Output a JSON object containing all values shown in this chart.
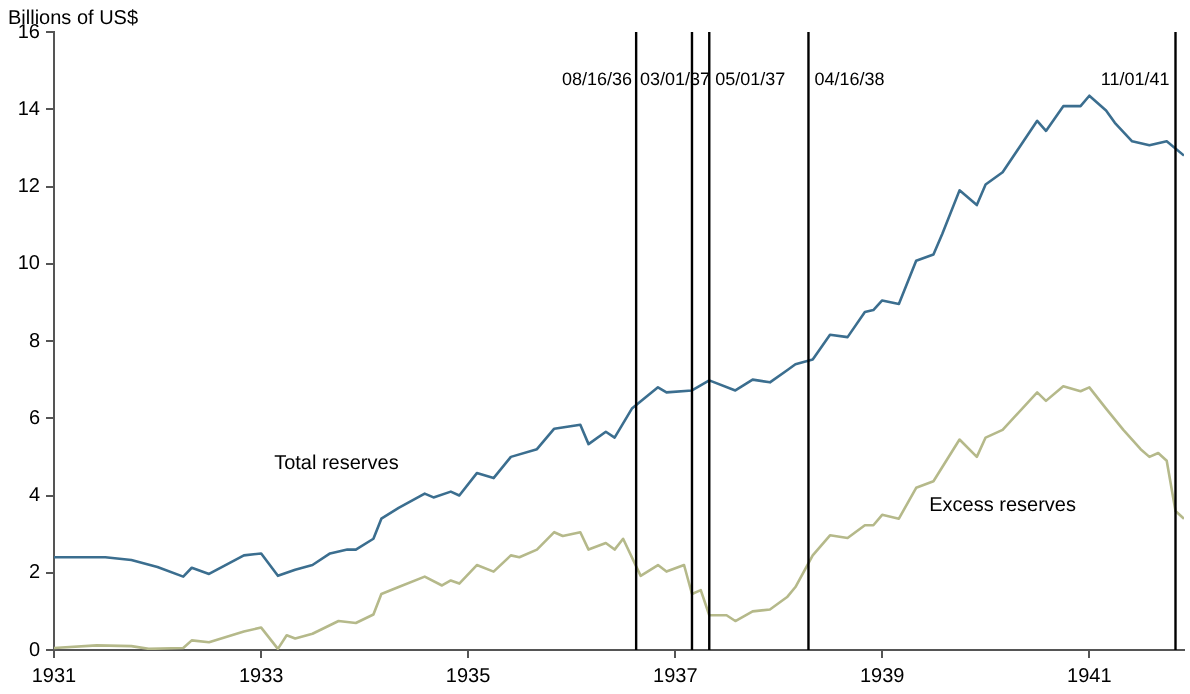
{
  "chart_data": {
    "type": "line",
    "ylabel": "Billions of US$",
    "xlim": [
      "1931-01",
      "1941-12"
    ],
    "xticks": [
      "1931",
      "1933",
      "1935",
      "1937",
      "1939",
      "1941"
    ],
    "ylim": [
      0,
      16
    ],
    "yticks": [
      0,
      2,
      4,
      6,
      8,
      10,
      12,
      14,
      16
    ],
    "grid": false,
    "legend": false,
    "marker": "none",
    "line_style": "solid",
    "series": [
      {
        "name": "Total reserves",
        "color": "#3b6e8f",
        "x": [
          "1931-01",
          "1931-07",
          "1931-10",
          "1932-01",
          "1932-04",
          "1932-05",
          "1932-07",
          "1932-11",
          "1933-01",
          "1933-03",
          "1933-05",
          "1933-07",
          "1933-09",
          "1933-11",
          "1933-12",
          "1934-02",
          "1934-03",
          "1934-05",
          "1934-08",
          "1934-09",
          "1934-11",
          "1934-12",
          "1935-02",
          "1935-04",
          "1935-06",
          "1935-09",
          "1935-11",
          "1936-02",
          "1936-03",
          "1936-05",
          "1936-06",
          "1936-08",
          "1936-11",
          "1936-12",
          "1937-03",
          "1937-05",
          "1937-08",
          "1937-10",
          "1937-12",
          "1938-02",
          "1938-03",
          "1938-05",
          "1938-07",
          "1938-09",
          "1938-11",
          "1938-12",
          "1939-01",
          "1939-03",
          "1939-05",
          "1939-07",
          "1939-08",
          "1939-10",
          "1939-12",
          "1940-01",
          "1940-03",
          "1940-07",
          "1940-08",
          "1940-10",
          "1940-12",
          "1941-01",
          "1941-03",
          "1941-04",
          "1941-06",
          "1941-08",
          "1941-10",
          "1941-12"
        ],
        "values": [
          2.4,
          2.4,
          2.33,
          2.15,
          1.9,
          2.13,
          1.97,
          2.45,
          2.5,
          1.92,
          2.08,
          2.2,
          2.5,
          2.6,
          2.6,
          2.88,
          3.4,
          3.68,
          4.05,
          3.95,
          4.1,
          4,
          4.58,
          4.45,
          5,
          5.2,
          5.73,
          5.83,
          5.33,
          5.65,
          5.5,
          6.25,
          6.8,
          6.67,
          6.72,
          6.98,
          6.72,
          7,
          6.93,
          7.25,
          7.4,
          7.52,
          8.16,
          8.1,
          8.75,
          8.8,
          9.05,
          8.96,
          10.08,
          10.24,
          10.77,
          11.9,
          11.52,
          12.05,
          12.37,
          13.7,
          13.44,
          14.08,
          14.08,
          14.35,
          13.97,
          13.65,
          13.17,
          13.07,
          13.17,
          12.8
        ]
      },
      {
        "name": "Excess reserves",
        "color": "#b5b98a",
        "x": [
          "1931-01",
          "1931-06",
          "1931-10",
          "1931-12",
          "1932-04",
          "1932-05",
          "1932-07",
          "1932-11",
          "1933-01",
          "1933-03",
          "1933-04",
          "1933-05",
          "1933-07",
          "1933-10",
          "1933-12",
          "1934-02",
          "1934-03",
          "1934-05",
          "1934-08",
          "1934-10",
          "1934-11",
          "1934-12",
          "1935-02",
          "1935-04",
          "1935-06",
          "1935-07",
          "1935-09",
          "1935-11",
          "1935-12",
          "1936-02",
          "1936-03",
          "1936-05",
          "1936-06",
          "1936-07",
          "1936-09",
          "1936-11",
          "1936-12",
          "1937-02",
          "1937-03",
          "1937-04",
          "1937-05",
          "1937-07",
          "1937-08",
          "1937-10",
          "1937-12",
          "1938-02",
          "1938-03",
          "1938-05",
          "1938-07",
          "1938-09",
          "1938-11",
          "1938-12",
          "1939-01",
          "1939-03",
          "1939-05",
          "1939-07",
          "1939-10",
          "1939-12",
          "1940-01",
          "1940-03",
          "1940-07",
          "1940-08",
          "1940-10",
          "1940-12",
          "1941-01",
          "1941-03",
          "1941-05",
          "1941-07",
          "1941-08",
          "1941-09",
          "1941-10",
          "1941-11",
          "1941-12"
        ],
        "values": [
          0.05,
          0.12,
          0.1,
          0.03,
          0.05,
          0.25,
          0.2,
          0.48,
          0.58,
          0.03,
          0.38,
          0.3,
          0.42,
          0.75,
          0.7,
          0.92,
          1.45,
          1.63,
          1.9,
          1.67,
          1.8,
          1.72,
          2.2,
          2.03,
          2.45,
          2.4,
          2.6,
          3.05,
          2.95,
          3.05,
          2.6,
          2.77,
          2.6,
          2.88,
          1.92,
          2.2,
          2.03,
          2.2,
          1.45,
          1.55,
          0.9,
          0.9,
          0.75,
          1,
          1.05,
          1.38,
          1.63,
          2.45,
          2.97,
          2.9,
          3.23,
          3.23,
          3.5,
          3.4,
          4.2,
          4.37,
          5.45,
          5,
          5.5,
          5.7,
          6.67,
          6.45,
          6.83,
          6.7,
          6.8,
          6.25,
          5.7,
          5.2,
          5,
          5.1,
          4.9,
          3.6,
          3.4
        ]
      }
    ],
    "ref_lines": [
      {
        "axis": "x",
        "value": "1936-08-16",
        "label": "08/16/36"
      },
      {
        "axis": "x",
        "value": "1937-03-01",
        "label": "03/01/37"
      },
      {
        "axis": "x",
        "value": "1937-05-01",
        "label": "05/01/37"
      },
      {
        "axis": "x",
        "value": "1938-04-16",
        "label": "04/16/38"
      },
      {
        "axis": "x",
        "value": "1941-11-01",
        "label": "11/01/41"
      }
    ]
  }
}
